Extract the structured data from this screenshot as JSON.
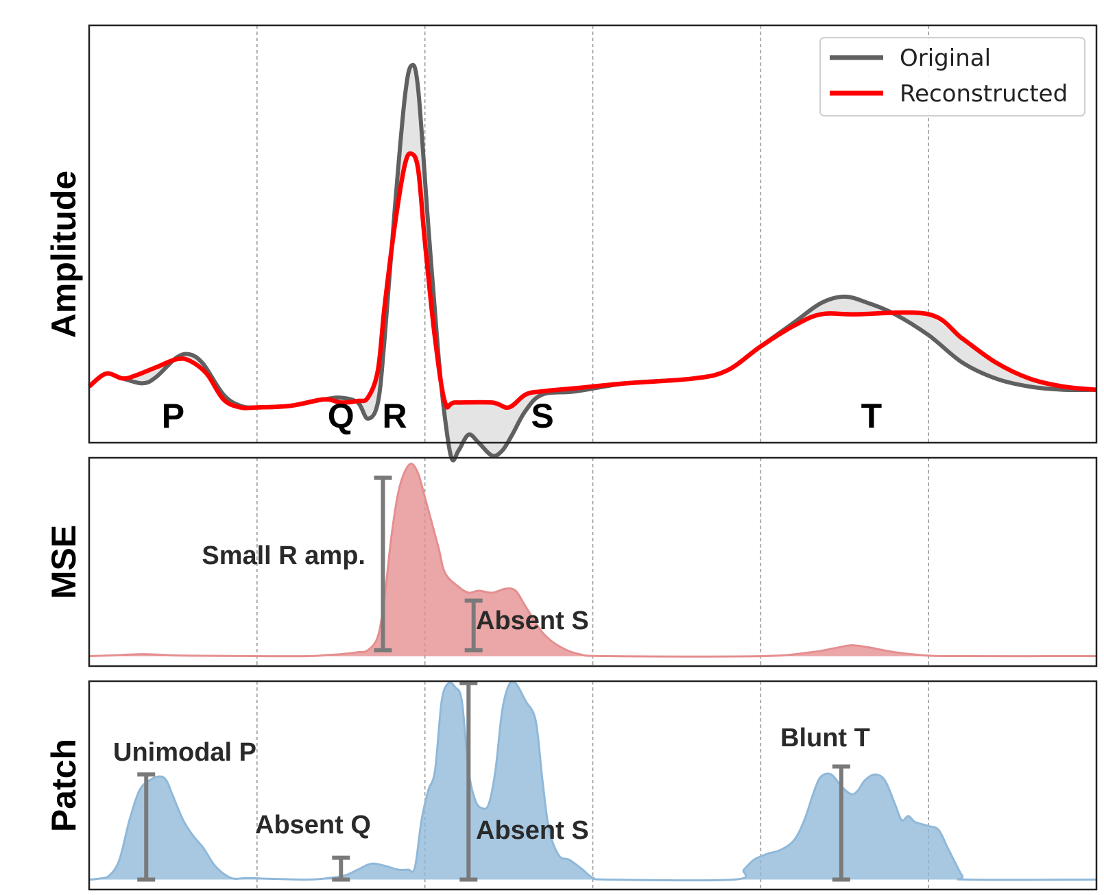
{
  "chart_data": [
    {
      "type": "line",
      "ylabel": "Amplitude",
      "legend": {
        "placement": "top-right",
        "entries": [
          "Original",
          "Reconstructed"
        ]
      },
      "grid": "x-only-dashed",
      "xlim": [
        0,
        300
      ],
      "ylim": [
        -0.35,
        2.25
      ],
      "x_gridlines": [
        50,
        100,
        150,
        200,
        250
      ],
      "colors": {
        "Original": "#606060",
        "Reconstructed": "#ff0000",
        "difference_fill": "#e4e4e4"
      },
      "series": [
        {
          "name": "Original",
          "points": [
            [
              0,
              0
            ],
            [
              5,
              0.08
            ],
            [
              10,
              0.05
            ],
            [
              16,
              0.02
            ],
            [
              20,
              0.06
            ],
            [
              26,
              0.18
            ],
            [
              30,
              0.2
            ],
            [
              34,
              0.14
            ],
            [
              40,
              -0.05
            ],
            [
              45,
              -0.12
            ],
            [
              50,
              -0.13
            ],
            [
              60,
              -0.12
            ],
            [
              70,
              -0.08
            ],
            [
              75,
              -0.07
            ],
            [
              80,
              -0.1
            ],
            [
              83,
              -0.2
            ],
            [
              86,
              -0.1
            ],
            [
              88,
              0.3
            ],
            [
              91,
              1.1
            ],
            [
              94,
              1.8
            ],
            [
              96,
              2.0
            ],
            [
              98,
              1.85
            ],
            [
              101,
              1.0
            ],
            [
              104,
              0.2
            ],
            [
              106,
              -0.2
            ],
            [
              108,
              -0.45
            ],
            [
              110,
              -0.4
            ],
            [
              113,
              -0.3
            ],
            [
              116,
              -0.35
            ],
            [
              120,
              -0.43
            ],
            [
              123,
              -0.4
            ],
            [
              126,
              -0.3
            ],
            [
              130,
              -0.15
            ],
            [
              135,
              -0.05
            ],
            [
              145,
              -0.03
            ],
            [
              160,
              0.02
            ],
            [
              180,
              0.05
            ],
            [
              190,
              0.1
            ],
            [
              200,
              0.25
            ],
            [
              210,
              0.4
            ],
            [
              218,
              0.52
            ],
            [
              225,
              0.56
            ],
            [
              232,
              0.52
            ],
            [
              240,
              0.45
            ],
            [
              250,
              0.32
            ],
            [
              260,
              0.15
            ],
            [
              270,
              0.05
            ],
            [
              280,
              0.0
            ],
            [
              290,
              -0.02
            ],
            [
              300,
              -0.02
            ]
          ]
        },
        {
          "name": "Reconstructed",
          "points": [
            [
              0,
              0
            ],
            [
              5,
              0.08
            ],
            [
              10,
              0.05
            ],
            [
              14,
              0.07
            ],
            [
              20,
              0.12
            ],
            [
              26,
              0.17
            ],
            [
              30,
              0.16
            ],
            [
              35,
              0.08
            ],
            [
              40,
              -0.08
            ],
            [
              45,
              -0.13
            ],
            [
              50,
              -0.13
            ],
            [
              60,
              -0.12
            ],
            [
              70,
              -0.08
            ],
            [
              75,
              -0.1
            ],
            [
              80,
              -0.09
            ],
            [
              83,
              -0.07
            ],
            [
              86,
              0.1
            ],
            [
              88,
              0.5
            ],
            [
              91,
              1.0
            ],
            [
              94,
              1.38
            ],
            [
              96,
              1.45
            ],
            [
              98,
              1.35
            ],
            [
              100,
              0.9
            ],
            [
              103,
              0.3
            ],
            [
              106,
              -0.1
            ],
            [
              109,
              -0.1
            ],
            [
              120,
              -0.1
            ],
            [
              125,
              -0.13
            ],
            [
              130,
              -0.05
            ],
            [
              135,
              -0.03
            ],
            [
              145,
              -0.01
            ],
            [
              160,
              0.02
            ],
            [
              180,
              0.05
            ],
            [
              190,
              0.1
            ],
            [
              200,
              0.25
            ],
            [
              210,
              0.38
            ],
            [
              218,
              0.45
            ],
            [
              228,
              0.45
            ],
            [
              250,
              0.45
            ],
            [
              260,
              0.3
            ],
            [
              270,
              0.15
            ],
            [
              280,
              0.05
            ],
            [
              290,
              0.0
            ],
            [
              300,
              -0.02
            ]
          ]
        }
      ],
      "wave_labels": [
        {
          "text": "P",
          "x": 25,
          "y": -0.38
        },
        {
          "text": "Q",
          "x": 75,
          "y": -0.38
        },
        {
          "text": "R",
          "x": 91,
          "y": -0.38
        },
        {
          "text": "S",
          "x": 135,
          "y": -0.38
        },
        {
          "text": "T",
          "x": 233,
          "y": -0.38
        }
      ]
    },
    {
      "type": "area",
      "ylabel": "MSE",
      "xlim": [
        0,
        300
      ],
      "ylim": [
        -0.05,
        1.0
      ],
      "color": "#e58e90",
      "x_gridlines": [
        50,
        100,
        150,
        200,
        250
      ],
      "series": [
        {
          "points": [
            [
              0,
              0
            ],
            [
              8,
              0.005
            ],
            [
              16,
              0.01
            ],
            [
              24,
              0.005
            ],
            [
              30,
              0.003
            ],
            [
              50,
              0
            ],
            [
              65,
              0
            ],
            [
              70,
              0.005
            ],
            [
              75,
              0.01
            ],
            [
              80,
              0.02
            ],
            [
              83,
              0.03
            ],
            [
              86,
              0.1
            ],
            [
              88,
              0.3
            ],
            [
              90,
              0.6
            ],
            [
              92,
              0.82
            ],
            [
              94,
              0.93
            ],
            [
              96,
              0.97
            ],
            [
              98,
              0.92
            ],
            [
              100,
              0.8
            ],
            [
              104,
              0.55
            ],
            [
              106,
              0.42
            ],
            [
              110,
              0.35
            ],
            [
              113,
              0.32
            ],
            [
              116,
              0.33
            ],
            [
              120,
              0.32
            ],
            [
              124,
              0.34
            ],
            [
              127,
              0.33
            ],
            [
              130,
              0.25
            ],
            [
              135,
              0.12
            ],
            [
              140,
              0.05
            ],
            [
              146,
              0.01
            ],
            [
              155,
              0
            ],
            [
              200,
              0
            ],
            [
              215,
              0.02
            ],
            [
              222,
              0.04
            ],
            [
              227,
              0.055
            ],
            [
              232,
              0.045
            ],
            [
              240,
              0.02
            ],
            [
              250,
              0.003
            ],
            [
              260,
              0
            ],
            [
              300,
              0
            ]
          ]
        }
      ],
      "annotations": [
        {
          "text": "Small R amp.",
          "bar_x": 87.5,
          "bar_y": [
            0.03,
            0.9
          ]
        },
        {
          "text": "Absent S",
          "bar_x": 114.5,
          "bar_y": [
            0.03,
            0.28
          ]
        }
      ]
    },
    {
      "type": "area",
      "ylabel": "Patch",
      "xlim": [
        0,
        300
      ],
      "ylim": [
        -0.05,
        1.0
      ],
      "color": "#8fb8d9",
      "x_gridlines": [
        50,
        100,
        150,
        200,
        250
      ],
      "series": [
        {
          "points": [
            [
              0,
              0
            ],
            [
              3,
              0.005
            ],
            [
              6,
              0.02
            ],
            [
              9,
              0.1
            ],
            [
              12,
              0.3
            ],
            [
              15,
              0.45
            ],
            [
              18,
              0.5
            ],
            [
              21,
              0.52
            ],
            [
              23,
              0.5
            ],
            [
              25,
              0.42
            ],
            [
              28,
              0.3
            ],
            [
              31,
              0.22
            ],
            [
              34,
              0.16
            ],
            [
              37,
              0.08
            ],
            [
              40,
              0.03
            ],
            [
              43,
              0.005
            ],
            [
              47,
              0.008
            ],
            [
              52,
              0.005
            ],
            [
              58,
              0.002
            ],
            [
              65,
              0
            ],
            [
              70,
              0.005
            ],
            [
              76,
              0.02
            ],
            [
              80,
              0.05
            ],
            [
              84,
              0.08
            ],
            [
              88,
              0.07
            ],
            [
              92,
              0.05
            ],
            [
              95,
              0.05
            ],
            [
              97,
              0.06
            ],
            [
              99,
              0.3
            ],
            [
              101,
              0.45
            ],
            [
              103,
              0.55
            ],
            [
              105,
              0.9
            ],
            [
              107,
              0.99
            ],
            [
              109,
              0.97
            ],
            [
              111,
              0.9
            ],
            [
              113,
              0.55
            ],
            [
              115,
              0.4
            ],
            [
              117,
              0.36
            ],
            [
              119,
              0.38
            ],
            [
              121,
              0.55
            ],
            [
              123,
              0.85
            ],
            [
              125,
              0.98
            ],
            [
              127,
              0.99
            ],
            [
              130,
              0.9
            ],
            [
              133,
              0.8
            ],
            [
              135,
              0.5
            ],
            [
              137,
              0.25
            ],
            [
              140,
              0.12
            ],
            [
              143,
              0.1
            ],
            [
              147,
              0.05
            ],
            [
              150,
              0.01
            ],
            [
              155,
              0
            ],
            [
              192,
              0
            ],
            [
              195,
              0.05
            ],
            [
              198,
              0.1
            ],
            [
              202,
              0.13
            ],
            [
              206,
              0.15
            ],
            [
              210,
              0.2
            ],
            [
              213,
              0.3
            ],
            [
              216,
              0.45
            ],
            [
              218,
              0.52
            ],
            [
              221,
              0.53
            ],
            [
              224,
              0.47
            ],
            [
              227,
              0.43
            ],
            [
              229,
              0.45
            ],
            [
              231,
              0.5
            ],
            [
              234,
              0.53
            ],
            [
              237,
              0.5
            ],
            [
              240,
              0.38
            ],
            [
              242,
              0.3
            ],
            [
              244,
              0.32
            ],
            [
              246,
              0.29
            ],
            [
              250,
              0.27
            ],
            [
              253,
              0.25
            ],
            [
              256,
              0.15
            ],
            [
              260,
              0.02
            ],
            [
              262,
              0
            ],
            [
              300,
              0
            ]
          ]
        }
      ],
      "annotations": [
        {
          "text": "Unimodal P",
          "bar_x": 17,
          "bar_y": [
            0.0,
            0.53
          ]
        },
        {
          "text": "Absent Q",
          "bar_x": 75,
          "bar_y": [
            0.0,
            0.11
          ]
        },
        {
          "text": "Absent S",
          "bar_x": 113,
          "bar_y": [
            0.0,
            0.99
          ]
        },
        {
          "text": "Blunt T",
          "bar_x": 224,
          "bar_y": [
            0.0,
            0.57
          ]
        }
      ]
    }
  ]
}
